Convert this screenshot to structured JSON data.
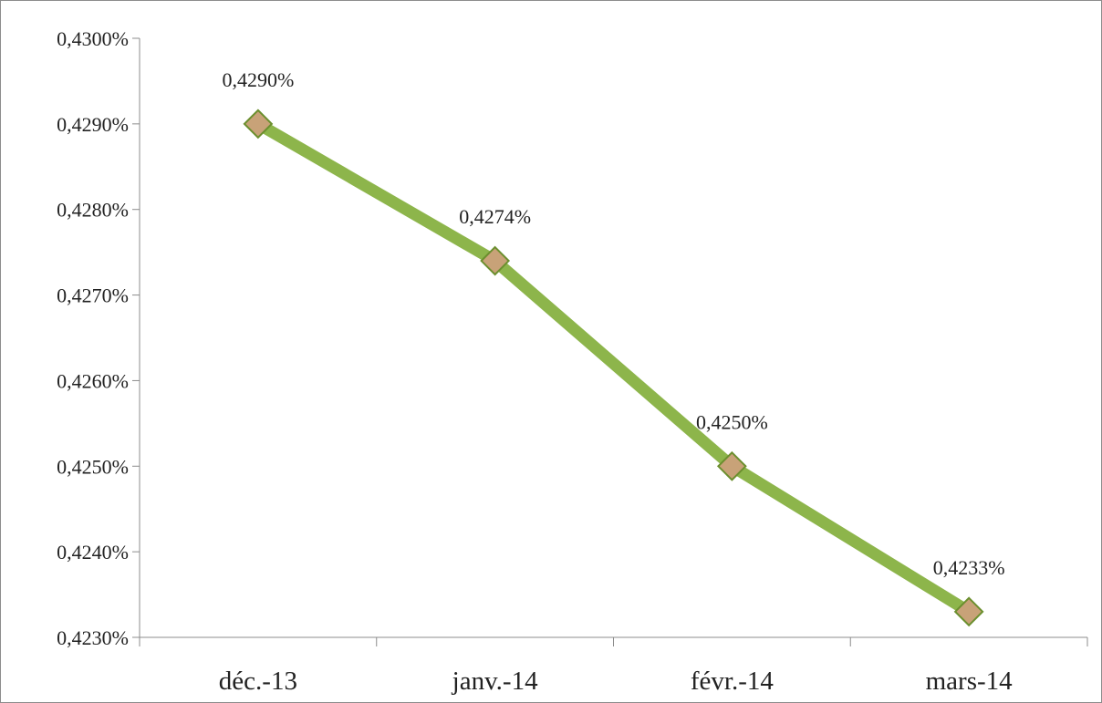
{
  "chart_data": {
    "type": "line",
    "categories": [
      "déc.-13",
      "janv.-14",
      "févr.-14",
      "mars-14"
    ],
    "series": [
      {
        "values": [
          0.429,
          0.4274,
          0.425,
          0.4233
        ],
        "data_labels": [
          "0,4290%",
          "0,4274%",
          "0,4250%",
          "0,4233%"
        ]
      }
    ],
    "ylim": [
      0.423,
      0.43
    ],
    "y_ticks": [
      0.423,
      0.424,
      0.425,
      0.426,
      0.427,
      0.428,
      0.429,
      0.43
    ],
    "y_tick_labels": [
      "0,4230%",
      "0,4240%",
      "0,4250%",
      "0,4260%",
      "0,4270%",
      "0,4280%",
      "0,4290%",
      "0,4300%"
    ],
    "grid": false,
    "legend": "none",
    "colors": {
      "line": "#8db54b",
      "marker_fill": "#c8a278",
      "marker_edge": "#6b8f2e",
      "axis": "#8c8c8c"
    }
  }
}
